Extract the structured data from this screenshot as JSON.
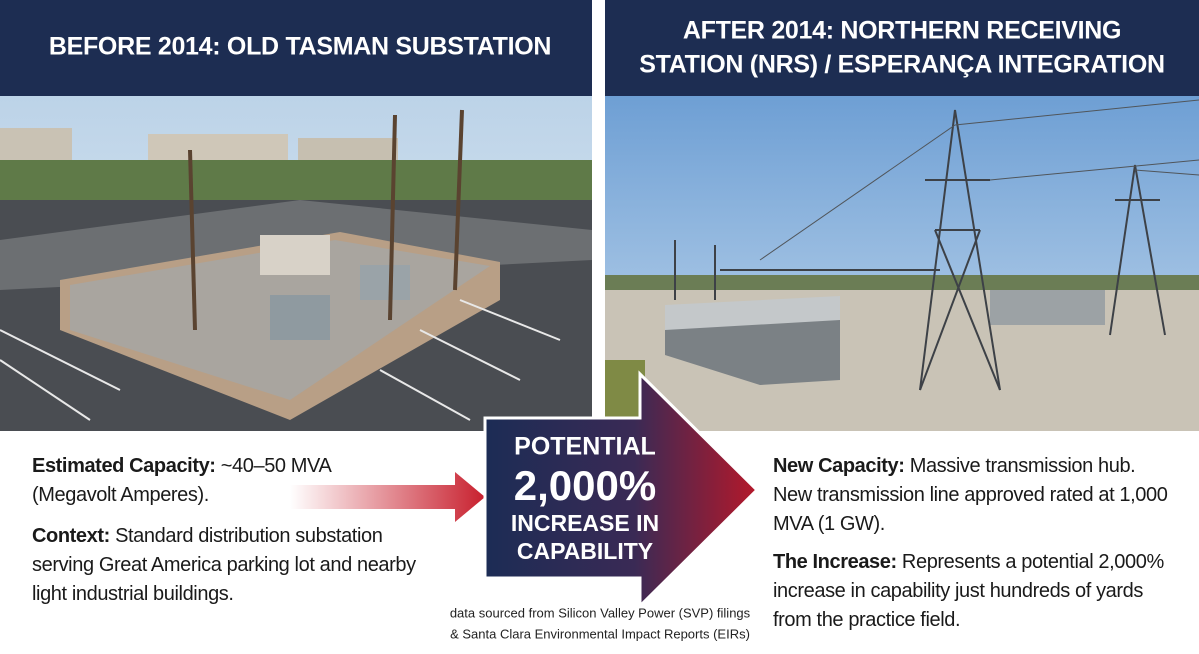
{
  "left": {
    "title": "BEFORE 2014: OLD TASMAN SUBSTATION",
    "items": [
      {
        "label": "Estimated Capacity:",
        "text": "~40–50 MVA (Megavolt Amperes)."
      },
      {
        "label": "Context:",
        "text": "Standard distribution substation serving Great America parking lot and nearby light industrial buildings."
      }
    ]
  },
  "right": {
    "title_lines": [
      "AFTER 2014: NORTHERN RECEIVING",
      "STATION (NRS) / ESPERANÇA INTEGRATION"
    ],
    "items": [
      {
        "label": "New Capacity:",
        "text": "Massive transmission hub. New transmission line approved rated at 1,000 MVA (1 GW)."
      },
      {
        "label": "The Increase:",
        "text": "Represents a potential 2,000% increase in capability just hundreds of yards from the practice field."
      }
    ]
  },
  "callout": {
    "lines": [
      "POTENTIAL",
      "2,000%",
      "INCREASE IN",
      "CAPABILITY"
    ]
  },
  "source_lines": [
    "data sourced from Silicon Valley Power (SVP) filings",
    "& Santa Clara Environmental Impact Reports (EIRs)"
  ]
}
